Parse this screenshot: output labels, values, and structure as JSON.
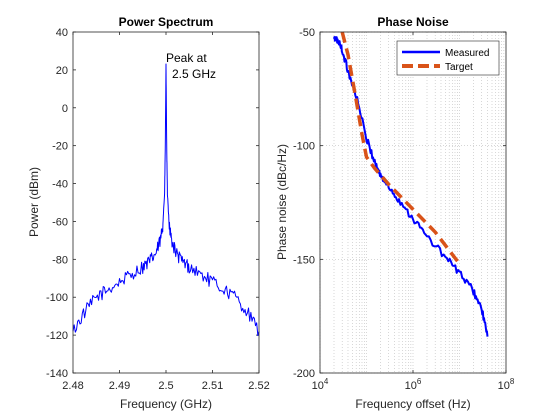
{
  "chart_data": [
    {
      "type": "line",
      "title": "Power Spectrum",
      "xlabel": "Frequency (GHz)",
      "ylabel": "Power (dBm)",
      "xlim": [
        2.48,
        2.52
      ],
      "ylim": [
        -140,
        40
      ],
      "xticks": [
        2.48,
        2.49,
        2.5,
        2.51,
        2.52
      ],
      "xtick_labels": [
        "2.48",
        "2.49",
        "2.5",
        "2.51",
        "2.52"
      ],
      "yticks": [
        -140,
        -120,
        -100,
        -80,
        -60,
        -40,
        -20,
        0,
        20,
        40
      ],
      "ytick_labels": [
        "-140",
        "-120",
        "-100",
        "-80",
        "-60",
        "-40",
        "-20",
        "0",
        "20",
        "40"
      ],
      "grid": false,
      "annotation": {
        "lines": [
          "Peak at",
          "2.5 GHz"
        ]
      },
      "series": [
        {
          "color": "#0000ff",
          "x": [
            2.48,
            2.4825,
            2.485,
            2.4875,
            2.49,
            2.4925,
            2.495,
            2.4965,
            2.4978,
            2.4988,
            2.4993,
            2.4997,
            2.49985,
            2.5,
            2.50015,
            2.5003,
            2.5007,
            2.5012,
            2.5022,
            2.5035,
            2.505,
            2.5075,
            2.51,
            2.5125,
            2.515,
            2.5175,
            2.52
          ],
          "y": [
            -118,
            -108,
            -100,
            -96,
            -92,
            -88,
            -84,
            -81,
            -77,
            -70,
            -62,
            -45,
            -20,
            22,
            -20,
            -45,
            -62,
            -70,
            -77,
            -81,
            -84,
            -88,
            -92,
            -96,
            -100,
            -108,
            -118
          ]
        }
      ]
    },
    {
      "type": "line",
      "title": "Phase Noise",
      "xlabel": "Frequency offset (Hz)",
      "ylabel": "Phase noise (dBc/Hz)",
      "xscale": "log",
      "xlim": [
        10000,
        100000000
      ],
      "ylim": [
        -200,
        -50
      ],
      "xticks": [
        10000,
        1000000,
        100000000
      ],
      "xtick_base": "10",
      "xtick_exponents": [
        "4",
        "6",
        "8"
      ],
      "yticks": [
        -200,
        -150,
        -100,
        -50
      ],
      "ytick_labels": [
        "-200",
        "-150",
        "-100",
        "-50"
      ],
      "grid": true,
      "legend_position": "top-right",
      "series": [
        {
          "name": "Measured",
          "color": "#0000ff",
          "style": "solid",
          "x": [
            20000,
            25000,
            30000,
            40000,
            60000,
            100000,
            150000,
            200000,
            300000,
            500000,
            1000000,
            2000000,
            5000000,
            10000000,
            20000000,
            30000000,
            40000000
          ],
          "y": [
            -53,
            -54,
            -58,
            -67,
            -78,
            -97,
            -107,
            -113,
            -118,
            -124,
            -132,
            -140,
            -149,
            -156,
            -164,
            -172,
            -184
          ]
        },
        {
          "name": "Target",
          "color": "#d95319",
          "style": "dashed",
          "x": [
            30000,
            40000,
            60000,
            80000,
            100000,
            150000,
            300000,
            1000000,
            3000000,
            10000000
          ],
          "y": [
            -50,
            -60,
            -80,
            -95,
            -105,
            -110,
            -117,
            -128,
            -138,
            -152
          ]
        }
      ]
    }
  ]
}
